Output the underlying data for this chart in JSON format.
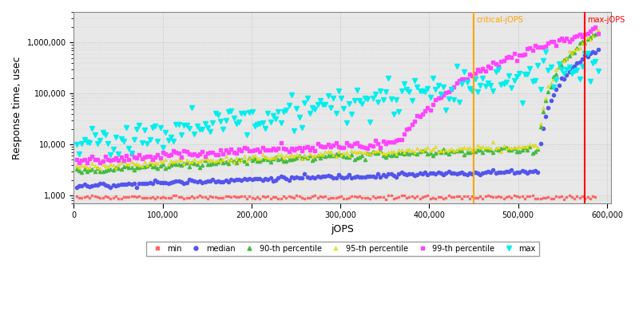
{
  "xlabel": "jOPS",
  "ylabel": "Response time, usec",
  "critical_jops": 450000,
  "max_jops": 575000,
  "critical_label": "critical-jOPS",
  "max_label": "max-jOPS",
  "critical_color": "#FFA500",
  "max_color": "#FF0000",
  "xmax": 590000,
  "ymin": 700,
  "ymax": 4000000,
  "series_colors": {
    "min": "#FF6666",
    "median": "#5555EE",
    "p90": "#44BB44",
    "p95": "#EEEE00",
    "p99": "#FF44FF",
    "max": "#00EEEE"
  },
  "legend_labels": [
    "min",
    "median",
    "90-th percentile",
    "95-th percentile",
    "99-th percentile",
    "max"
  ],
  "background_color": "#E8E8E8",
  "grid_color": "#BBBBBB",
  "fig_width": 8.0,
  "fig_height": 4.0
}
